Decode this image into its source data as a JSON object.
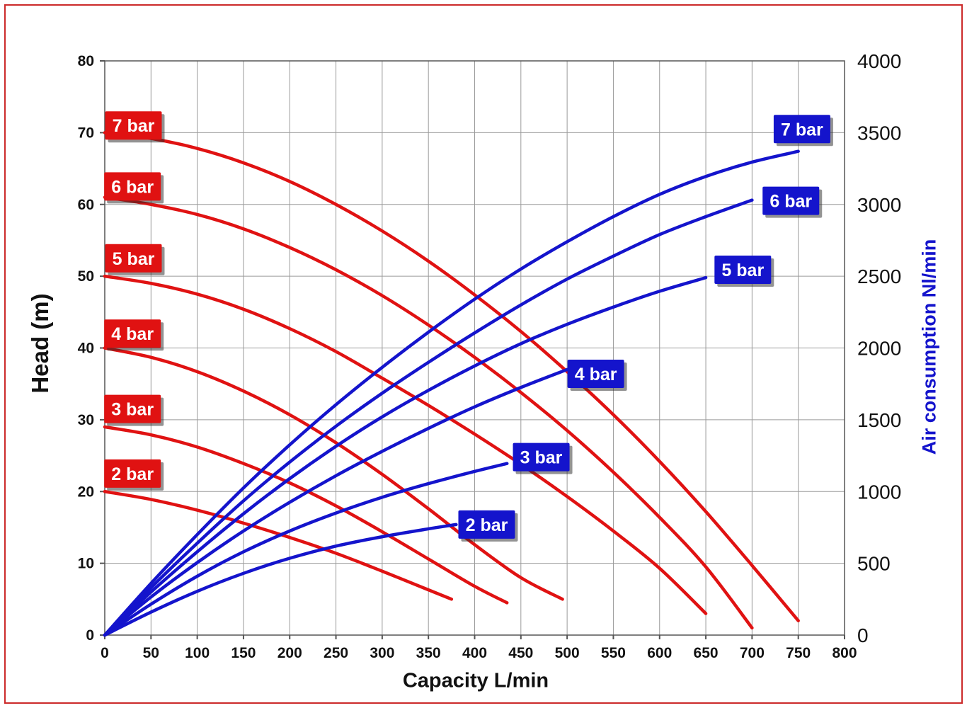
{
  "page": {
    "frame_color": "#cc2a2a",
    "background": "#ffffff"
  },
  "chart_data": {
    "type": "line",
    "title": "",
    "xlabel": "Capacity L/min",
    "ylabel_left": "Head (m)",
    "ylabel_right": "Air consumption Nl/min",
    "x_min": 0,
    "x_max": 800,
    "yl_min": 0,
    "yl_max": 80,
    "yr_min": 0,
    "yr_max": 4000,
    "x_ticks": [
      0,
      50,
      100,
      150,
      200,
      250,
      300,
      350,
      400,
      450,
      500,
      550,
      600,
      650,
      700,
      750,
      800
    ],
    "yl_ticks": [
      0,
      10,
      20,
      30,
      40,
      50,
      60,
      70,
      80
    ],
    "yr_ticks": [
      0,
      500,
      1000,
      1500,
      2000,
      2500,
      3000,
      3500,
      4000
    ],
    "grid": true,
    "legend_position": "on-curve-labels",
    "colors": {
      "head": "#e01212",
      "air": "#1414cc",
      "grid": "#9a9a9a",
      "axis": "#555555",
      "tick_text": "#111111",
      "label_text": "#ffffff",
      "label_shadow": "rgba(40,40,40,0.5)"
    },
    "head_series": [
      {
        "name": "2 bar",
        "label": [
          30,
          22.5
        ],
        "points": [
          [
            0,
            20
          ],
          [
            50,
            18.9
          ],
          [
            100,
            17.4
          ],
          [
            150,
            15.6
          ],
          [
            200,
            13.6
          ],
          [
            250,
            11.4
          ],
          [
            300,
            8.9
          ],
          [
            350,
            6.3
          ],
          [
            375,
            5
          ]
        ]
      },
      {
        "name": "3 bar",
        "label": [
          30,
          31.5
        ],
        "points": [
          [
            0,
            29
          ],
          [
            50,
            27.9
          ],
          [
            100,
            26.2
          ],
          [
            150,
            23.9
          ],
          [
            200,
            21.2
          ],
          [
            250,
            18
          ],
          [
            300,
            14.4
          ],
          [
            350,
            10.6
          ],
          [
            400,
            6.8
          ],
          [
            435,
            4.5
          ]
        ]
      },
      {
        "name": "4 bar",
        "label": [
          30,
          42
        ],
        "points": [
          [
            0,
            40
          ],
          [
            50,
            38.7
          ],
          [
            100,
            36.7
          ],
          [
            150,
            34
          ],
          [
            200,
            30.7
          ],
          [
            250,
            26.8
          ],
          [
            300,
            22.4
          ],
          [
            350,
            17.6
          ],
          [
            400,
            12.6
          ],
          [
            450,
            8
          ],
          [
            495,
            5
          ]
        ]
      },
      {
        "name": "5 bar",
        "label": [
          31,
          52.5
        ],
        "points": [
          [
            0,
            50
          ],
          [
            50,
            49
          ],
          [
            100,
            47.5
          ],
          [
            150,
            45.4
          ],
          [
            200,
            42.7
          ],
          [
            250,
            39.5
          ],
          [
            300,
            35.8
          ],
          [
            350,
            32
          ],
          [
            400,
            28
          ],
          [
            450,
            23.8
          ],
          [
            500,
            19.3
          ],
          [
            550,
            14.5
          ],
          [
            600,
            9.3
          ],
          [
            650,
            3
          ]
        ]
      },
      {
        "name": "6 bar",
        "label": [
          30,
          62.5
        ],
        "points": [
          [
            0,
            61
          ],
          [
            50,
            60
          ],
          [
            100,
            58.6
          ],
          [
            150,
            56.6
          ],
          [
            200,
            54
          ],
          [
            250,
            50.9
          ],
          [
            300,
            47.3
          ],
          [
            350,
            43.2
          ],
          [
            400,
            38.7
          ],
          [
            450,
            33.8
          ],
          [
            500,
            28.5
          ],
          [
            550,
            22.7
          ],
          [
            600,
            16.4
          ],
          [
            650,
            9.5
          ],
          [
            700,
            1
          ]
        ]
      },
      {
        "name": "7 bar",
        "label": [
          31,
          71
        ],
        "points": [
          [
            0,
            70
          ],
          [
            50,
            69.2
          ],
          [
            100,
            67.8
          ],
          [
            150,
            65.8
          ],
          [
            200,
            63.2
          ],
          [
            250,
            60
          ],
          [
            300,
            56.3
          ],
          [
            350,
            52.1
          ],
          [
            400,
            47.4
          ],
          [
            450,
            42.3
          ],
          [
            500,
            36.7
          ],
          [
            550,
            30.7
          ],
          [
            600,
            24.2
          ],
          [
            650,
            17.2
          ],
          [
            700,
            9.7
          ],
          [
            750,
            2
          ]
        ]
      }
    ],
    "air_series": [
      {
        "name": "2 bar",
        "label": [
          413,
          770
        ],
        "points": [
          [
            0,
            0
          ],
          [
            50,
            160
          ],
          [
            100,
            305
          ],
          [
            150,
            430
          ],
          [
            200,
            535
          ],
          [
            250,
            620
          ],
          [
            300,
            685
          ],
          [
            350,
            740
          ],
          [
            380,
            770
          ]
        ]
      },
      {
        "name": "3 bar",
        "label": [
          472,
          1240
        ],
        "points": [
          [
            0,
            0
          ],
          [
            50,
            215
          ],
          [
            100,
            410
          ],
          [
            150,
            580
          ],
          [
            200,
            725
          ],
          [
            250,
            850
          ],
          [
            300,
            960
          ],
          [
            350,
            1055
          ],
          [
            400,
            1140
          ],
          [
            435,
            1195
          ]
        ]
      },
      {
        "name": "4 bar",
        "label": [
          531,
          1820
        ],
        "points": [
          [
            0,
            0
          ],
          [
            50,
            265
          ],
          [
            100,
            505
          ],
          [
            150,
            725
          ],
          [
            200,
            925
          ],
          [
            250,
            1110
          ],
          [
            300,
            1280
          ],
          [
            350,
            1440
          ],
          [
            400,
            1590
          ],
          [
            450,
            1725
          ],
          [
            500,
            1850
          ]
        ]
      },
      {
        "name": "5 bar",
        "label": [
          690,
          2545
        ],
        "points": [
          [
            0,
            0
          ],
          [
            50,
            300
          ],
          [
            100,
            580
          ],
          [
            150,
            845
          ],
          [
            200,
            1090
          ],
          [
            250,
            1315
          ],
          [
            300,
            1520
          ],
          [
            350,
            1705
          ],
          [
            400,
            1875
          ],
          [
            450,
            2030
          ],
          [
            500,
            2165
          ],
          [
            550,
            2285
          ],
          [
            600,
            2395
          ],
          [
            650,
            2490
          ]
        ]
      },
      {
        "name": "6 bar",
        "label": [
          742,
          3025
        ],
        "points": [
          [
            0,
            0
          ],
          [
            50,
            330
          ],
          [
            100,
            640
          ],
          [
            150,
            935
          ],
          [
            200,
            1205
          ],
          [
            250,
            1455
          ],
          [
            300,
            1685
          ],
          [
            350,
            1900
          ],
          [
            400,
            2105
          ],
          [
            450,
            2300
          ],
          [
            500,
            2480
          ],
          [
            550,
            2640
          ],
          [
            600,
            2790
          ],
          [
            650,
            2915
          ],
          [
            700,
            3030
          ]
        ]
      },
      {
        "name": "7 bar",
        "label": [
          754,
          3525
        ],
        "points": [
          [
            0,
            0
          ],
          [
            50,
            360
          ],
          [
            100,
            700
          ],
          [
            150,
            1025
          ],
          [
            200,
            1325
          ],
          [
            250,
            1605
          ],
          [
            300,
            1865
          ],
          [
            350,
            2110
          ],
          [
            400,
            2340
          ],
          [
            450,
            2550
          ],
          [
            500,
            2740
          ],
          [
            550,
            2915
          ],
          [
            600,
            3070
          ],
          [
            650,
            3195
          ],
          [
            700,
            3295
          ],
          [
            750,
            3370
          ]
        ]
      }
    ]
  }
}
